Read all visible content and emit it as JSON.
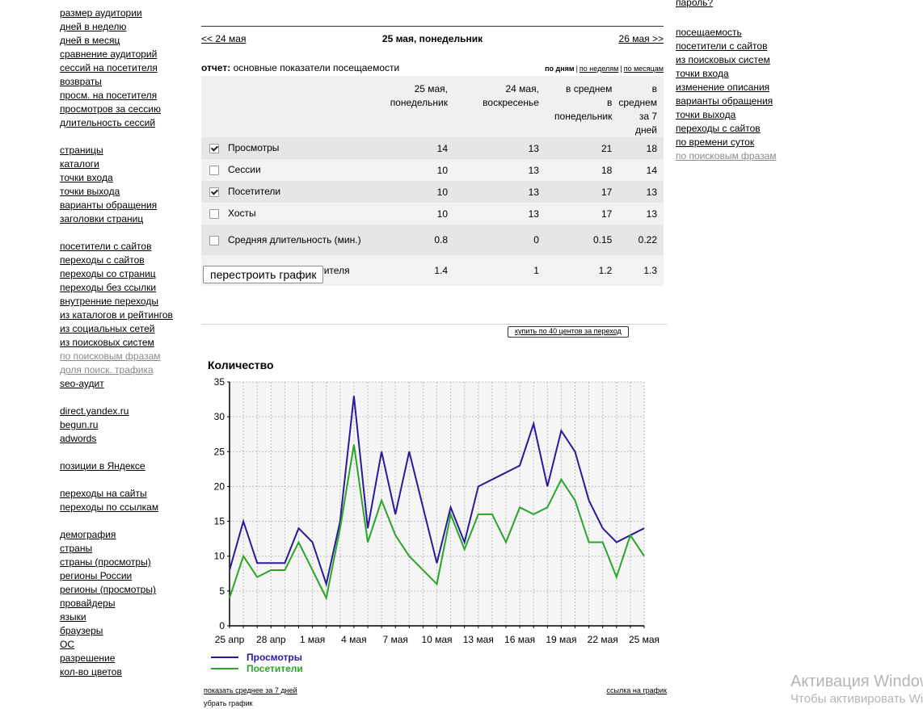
{
  "left_nav": [
    {
      "items": [
        {
          "label": "размер аудитории"
        },
        {
          "label": "дней в неделю"
        },
        {
          "label": "дней в месяц"
        },
        {
          "label": "сравнение аудиторий"
        },
        {
          "label": "сессий на посетителя"
        },
        {
          "label": "возвраты"
        },
        {
          "label": "просм. на посетителя"
        },
        {
          "label": "просмотров за сессию"
        },
        {
          "label": "длительность сессий"
        }
      ]
    },
    {
      "items": [
        {
          "label": "страницы"
        },
        {
          "label": "каталоги"
        },
        {
          "label": "точки входа"
        },
        {
          "label": "точки выхода"
        },
        {
          "label": "варианты обращения"
        },
        {
          "label": "заголовки страниц"
        }
      ]
    },
    {
      "items": [
        {
          "label": "посетители с сайтов"
        },
        {
          "label": "переходы с сайтов"
        },
        {
          "label": "переходы со страниц"
        },
        {
          "label": "переходы без ссылки"
        },
        {
          "label": "внутренние переходы"
        },
        {
          "label": "из каталогов и рейтингов"
        },
        {
          "label": "из социальных сетей"
        },
        {
          "label": "из поисковых систем"
        },
        {
          "label": "по поисковым фразам",
          "grey": true
        },
        {
          "label": "доля поиск. трафика",
          "grey": true
        },
        {
          "label": "seo-аудит"
        }
      ]
    },
    {
      "items": [
        {
          "label": "direct.yandex.ru"
        },
        {
          "label": "begun.ru"
        },
        {
          "label": "adwords"
        }
      ]
    },
    {
      "items": [
        {
          "label": "позиции в Яндексе"
        }
      ]
    },
    {
      "items": [
        {
          "label": "переходы на сайты"
        },
        {
          "label": "переходы по ссылкам"
        }
      ]
    },
    {
      "items": [
        {
          "label": "демография"
        },
        {
          "label": "страны"
        },
        {
          "label": "страны (просмотры)"
        },
        {
          "label": "регионы России"
        },
        {
          "label": "регионы (просмотры)"
        },
        {
          "label": "провайдеры"
        },
        {
          "label": "языки"
        },
        {
          "label": "браузеры"
        },
        {
          "label": "ОС"
        },
        {
          "label": "разрешение"
        },
        {
          "label": "кол-во цветов"
        }
      ]
    }
  ],
  "right_nav": {
    "top": "пароль?",
    "items": [
      {
        "label": "посещаемость"
      },
      {
        "label": "посетители с сайтов"
      },
      {
        "label": "из поисковых систем"
      },
      {
        "label": "точки входа"
      },
      {
        "label": "изменение описания"
      },
      {
        "label": "варианты обращения"
      },
      {
        "label": "точки выхода"
      },
      {
        "label": "переходы с сайтов"
      },
      {
        "label": "по времени суток"
      },
      {
        "label": "по поисковым фразам",
        "grey": true
      }
    ]
  },
  "date_nav": {
    "prev": "<< 24 мая",
    "current": "25 мая, понедельник",
    "next": "26 мая >>"
  },
  "report": {
    "label": "отчет:",
    "title": "основные показатели посещаемости",
    "periods": [
      {
        "label": "по дням",
        "selected": true
      },
      {
        "label": "по неделям",
        "selected": false
      },
      {
        "label": "по месяцам",
        "selected": false
      }
    ]
  },
  "table": {
    "columns": [
      "25 мая,\nпонедельник",
      "24 мая,\nвоскресенье",
      "в среднем\nв\nпонедельник",
      "в\nсреднем\nза 7 дней"
    ],
    "rows": [
      {
        "name": "Просмотры",
        "checked": true,
        "values": [
          "14",
          "13",
          "21",
          "18"
        ]
      },
      {
        "name": "Сессии",
        "checked": false,
        "values": [
          "10",
          "13",
          "18",
          "14"
        ]
      },
      {
        "name": "Посетители",
        "checked": true,
        "values": [
          "10",
          "13",
          "17",
          "13"
        ]
      },
      {
        "name": "Хосты",
        "checked": false,
        "values": [
          "10",
          "13",
          "17",
          "13"
        ]
      },
      {
        "name": "Средняя длительность (мин.)",
        "checked": false,
        "values": [
          "0.8",
          "0",
          "0.15",
          "0.22"
        ]
      },
      {
        "name": "Просмотров на посетителя",
        "checked": false,
        "values": [
          "1.4",
          "1",
          "1.2",
          "1.3"
        ]
      }
    ]
  },
  "rebuild_button": "перестроить график",
  "buy_button": "купить по 40 центов за переход",
  "chart_data": {
    "type": "line",
    "title": "Количество",
    "ylim": [
      0,
      35
    ],
    "yticks": [
      0,
      5,
      10,
      15,
      20,
      25,
      30,
      35
    ],
    "grid": true,
    "x_tick_labels": [
      "25 апр",
      "28 апр",
      "1 мая",
      "4 мая",
      "7 мая",
      "10 мая",
      "13 мая",
      "16 мая",
      "19 мая",
      "22 мая",
      "25 мая"
    ],
    "x": [
      "25 апр",
      "26 апр",
      "27 апр",
      "28 апр",
      "29 апр",
      "30 апр",
      "1 мая",
      "2 мая",
      "3 мая",
      "4 мая",
      "5 мая",
      "6 мая",
      "7 мая",
      "8 мая",
      "9 мая",
      "10 мая",
      "11 мая",
      "12 мая",
      "13 мая",
      "14 мая",
      "15 мая",
      "16 мая",
      "17 мая",
      "18 мая",
      "19 мая",
      "20 мая",
      "21 мая",
      "22 мая",
      "23 мая",
      "24 мая",
      "25 мая"
    ],
    "legend_position": "bottom-left",
    "series": [
      {
        "name": "Просмотры",
        "color": "#2a1a9a",
        "values": [
          8,
          15,
          9,
          9,
          9,
          14,
          12,
          6,
          15,
          33,
          14,
          25,
          16,
          25,
          17,
          9,
          17,
          12,
          20,
          21,
          22,
          23,
          29,
          20,
          28,
          25,
          18,
          14,
          12,
          13,
          14
        ]
      },
      {
        "name": "Посетители",
        "color": "#2aa52a",
        "values": [
          4,
          10,
          7,
          8,
          8,
          12,
          8,
          4,
          14,
          26,
          12,
          18,
          13,
          10,
          8,
          6,
          16,
          11,
          16,
          16,
          12,
          17,
          16,
          17,
          21,
          18,
          12,
          12,
          7,
          13,
          10
        ]
      }
    ]
  },
  "chart_links": {
    "avg": "показать среднее за 7 дней",
    "link": "ссылка на график",
    "remove": "убрать график"
  },
  "watermark": {
    "line1": "Активация Windows",
    "line2": "Чтобы активировать Windows"
  }
}
